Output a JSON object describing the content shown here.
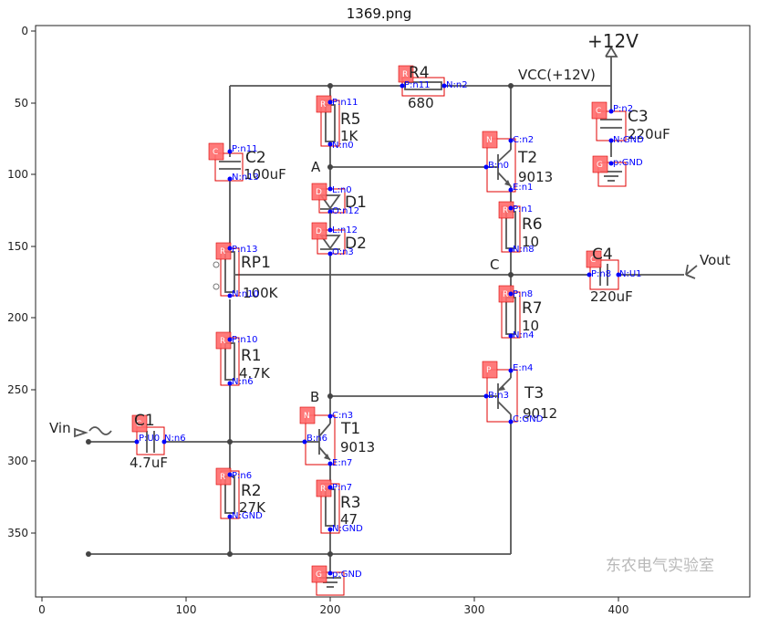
{
  "figure": {
    "title": "1369.png",
    "x_ticks": [
      "0",
      "100",
      "200",
      "300",
      "400"
    ],
    "y_ticks": [
      "0",
      "50",
      "100",
      "150",
      "200",
      "250",
      "300",
      "350"
    ],
    "watermark": "东农电气实验室"
  },
  "schematic": {
    "supply_label": "+12V",
    "vcc_label": "VCC(+12V)",
    "vin_label": "Vin",
    "vout_label": "Vout",
    "node_labels": {
      "A": "A",
      "B": "B",
      "C": "C"
    },
    "components": [
      {
        "key": "R4",
        "label": "R4",
        "value": "680",
        "tag": "R",
        "pins": [
          "P:n11",
          "N:n2"
        ]
      },
      {
        "key": "R5",
        "label": "R5",
        "value": "1K",
        "tag": "R",
        "pins": [
          "P:n11",
          "N:n0"
        ]
      },
      {
        "key": "C2",
        "label": "C2",
        "value": "100uF",
        "tag": "C",
        "pins": [
          "P:n11",
          "N:n13"
        ]
      },
      {
        "key": "D1",
        "label": "D1",
        "value": "",
        "tag": "D",
        "pins": [
          "L:n0",
          "O:n12"
        ]
      },
      {
        "key": "D2",
        "label": "D2",
        "value": "",
        "tag": "D",
        "pins": [
          "L:n12",
          "O:n3"
        ]
      },
      {
        "key": "RP1",
        "label": "RP1",
        "value": "100K",
        "tag": "R",
        "pins": [
          "P:n13",
          "N:n10"
        ]
      },
      {
        "key": "R1",
        "label": "R1",
        "value": "4.7K",
        "tag": "R",
        "pins": [
          "P:n10",
          "N:n6"
        ]
      },
      {
        "key": "C1",
        "label": "C1",
        "value": "4.7uF",
        "tag": "C",
        "pins": [
          "P:U0",
          "N:n6"
        ]
      },
      {
        "key": "R2",
        "label": "R2",
        "value": "27K",
        "tag": "R",
        "pins": [
          "P:n6",
          "N:GND"
        ]
      },
      {
        "key": "T1",
        "label": "T1",
        "value": "9013",
        "tag": "N",
        "pins": [
          "C:n3",
          "B:n6",
          "E:n7"
        ]
      },
      {
        "key": "R3",
        "label": "R3",
        "value": "47",
        "tag": "R",
        "pins": [
          "P:n7",
          "N:GND"
        ]
      },
      {
        "key": "G1",
        "label": "",
        "value": "",
        "tag": "G",
        "pins": [
          "p:GND"
        ]
      },
      {
        "key": "T2",
        "label": "T2",
        "value": "9013",
        "tag": "N",
        "pins": [
          "C:n2",
          "B:n0",
          "E:n1"
        ]
      },
      {
        "key": "R6",
        "label": "R6",
        "value": "10",
        "tag": "R",
        "pins": [
          "P:n1",
          "N:n8"
        ]
      },
      {
        "key": "R7",
        "label": "R7",
        "value": "10",
        "tag": "R",
        "pins": [
          "P:n8",
          "N:n4"
        ]
      },
      {
        "key": "T3",
        "label": "T3",
        "value": "9012",
        "tag": "P",
        "pins": [
          "E:n4",
          "B:n3",
          "C:GND"
        ]
      },
      {
        "key": "C3",
        "label": "C3",
        "value": "220uF",
        "tag": "C",
        "pins": [
          "P:n2",
          "N:GND"
        ]
      },
      {
        "key": "G2",
        "label": "",
        "value": "",
        "tag": "G",
        "pins": [
          "p:GND"
        ]
      },
      {
        "key": "C4",
        "label": "C4",
        "value": "220uF",
        "tag": "C",
        "pins": [
          "P:n8",
          "N:U1"
        ]
      }
    ]
  }
}
